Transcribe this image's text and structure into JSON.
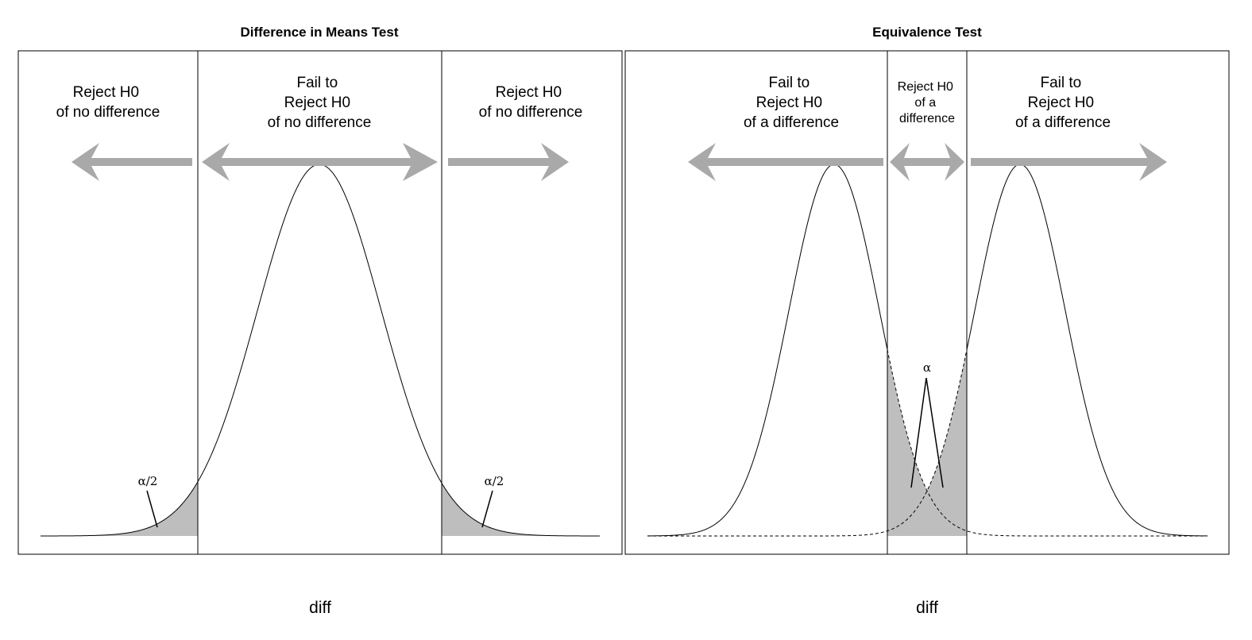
{
  "left_panel": {
    "title": "Difference in Means Test",
    "regions": {
      "left": [
        "Reject H0",
        "of no difference"
      ],
      "center": [
        "Fail to",
        "Reject H0",
        "of no difference"
      ],
      "right": [
        "Reject H0",
        "of no difference"
      ]
    },
    "annotation_left": "α/2",
    "annotation_right": "α/2",
    "xlabel": "diff"
  },
  "right_panel": {
    "title": "Equivalence Test",
    "regions": {
      "left": [
        "Fail to",
        "Reject H0",
        "of a difference"
      ],
      "center": [
        "Reject H0",
        "of a",
        "difference"
      ],
      "right": [
        "Fail to",
        "Reject H0",
        "of a difference"
      ]
    },
    "annotation": "α",
    "xlabel": "diff"
  },
  "colors": {
    "arrow": "#a9a9a9",
    "shade": "#bebebe",
    "line": "#000000",
    "background": "#ffffff"
  }
}
